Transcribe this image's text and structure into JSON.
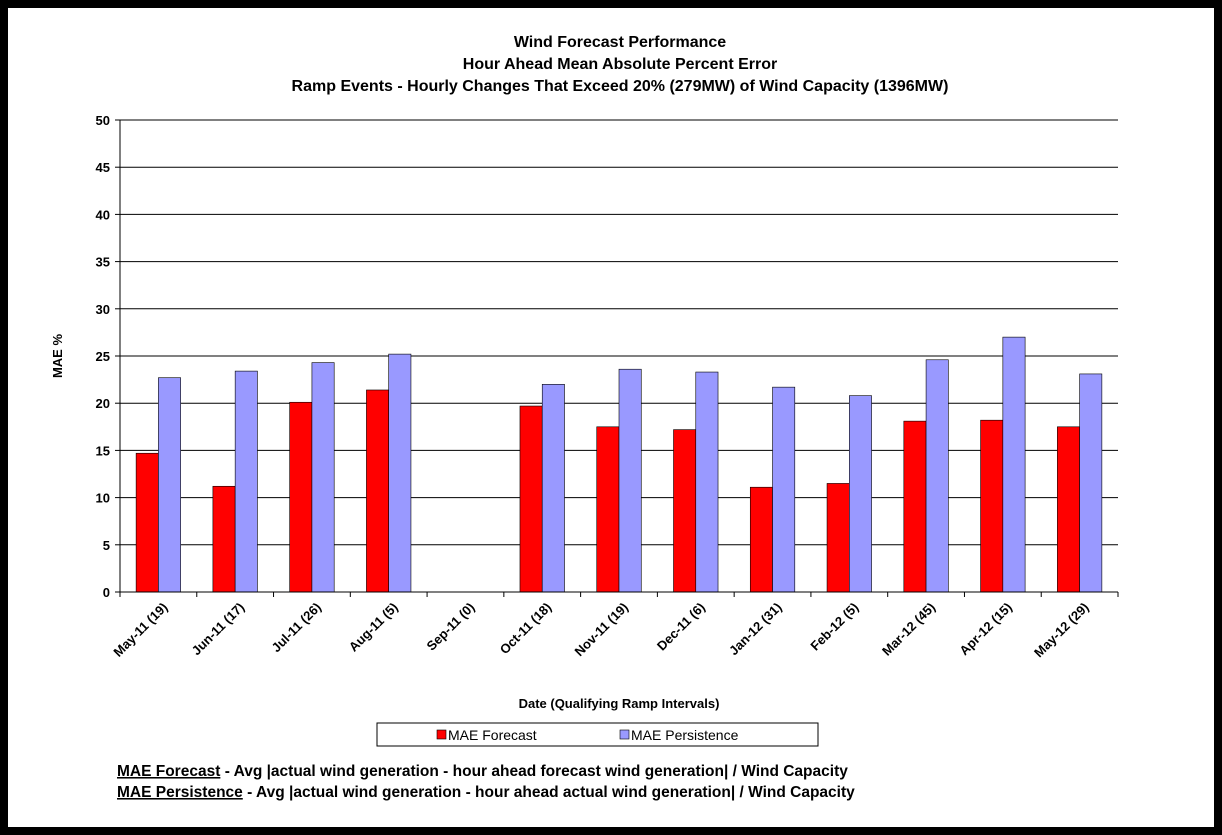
{
  "chart_data": {
    "type": "bar",
    "title": "Wind Forecast Performance",
    "subtitle": "Hour Ahead Mean Absolute Percent Error",
    "subtitle2": "Ramp Events - Hourly Changes That Exceed 20% (279MW) of Wind Capacity (1396MW)",
    "y_label": "MAE %",
    "x_label": "Date (Qualifying Ramp Intervals)",
    "categories": [
      "May-11 (19)",
      "Jun-11 (17)",
      "Jul-11 (26)",
      "Aug-11 (5)",
      "Sep-11 (0)",
      "Oct-11 (18)",
      "Nov-11 (19)",
      "Dec-11 (6)",
      "Jan-12 (31)",
      "Feb-12 (5)",
      "Mar-12 (45)",
      "Apr-12 (15)",
      "May-12 (29)"
    ],
    "series": [
      {
        "name": "MAE Forecast",
        "color": "#ff0000",
        "values": [
          14.7,
          11.2,
          20.1,
          21.4,
          null,
          19.7,
          17.5,
          17.2,
          11.1,
          11.5,
          18.1,
          18.2,
          17.5
        ]
      },
      {
        "name": "MAE Persistence",
        "color": "#9999ff",
        "values": [
          22.7,
          23.4,
          24.3,
          25.2,
          null,
          22.0,
          23.6,
          23.3,
          21.7,
          20.8,
          24.6,
          27.0,
          23.1
        ]
      }
    ],
    "ylim": [
      0,
      50
    ],
    "yticks": [
      0,
      5,
      10,
      15,
      20,
      25,
      30,
      35,
      40,
      45,
      50
    ],
    "grid": true,
    "notes": [
      {
        "term": "MAE Forecast",
        "text": "- Avg |actual wind generation - hour ahead forecast wind generation| / Wind Capacity"
      },
      {
        "term": "MAE Persistence",
        "text": "- Avg |actual wind generation - hour ahead actual wind generation| / Wind Capacity"
      }
    ]
  }
}
